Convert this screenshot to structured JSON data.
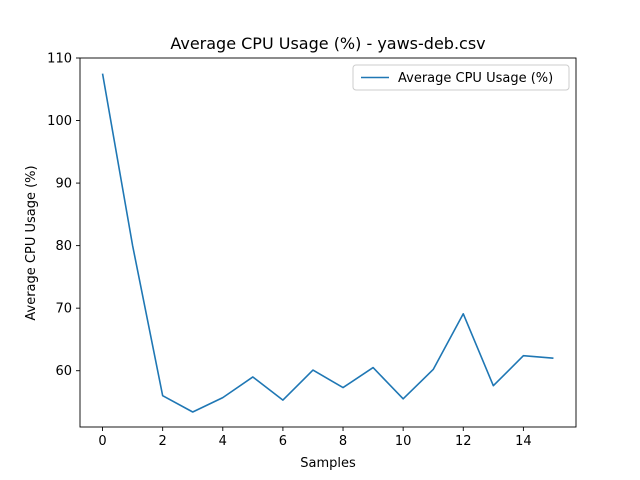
{
  "chart_data": {
    "type": "line",
    "title": "Average CPU Usage (%) - yaws-deb.csv",
    "xlabel": "Samples",
    "ylabel": "Average CPU Usage (%)",
    "xlim": [
      -0.75,
      15.75
    ],
    "ylim": [
      51,
      110
    ],
    "x_ticks": [
      0,
      2,
      4,
      6,
      8,
      10,
      12,
      14
    ],
    "y_ticks": [
      60,
      70,
      80,
      90,
      100,
      110
    ],
    "grid": false,
    "legend_position": "top-right",
    "series": [
      {
        "name": "Average CPU Usage (%)",
        "color": "#1f77b4",
        "x": [
          0,
          1,
          2,
          3,
          4,
          5,
          6,
          7,
          8,
          9,
          10,
          11,
          12,
          13,
          14,
          15
        ],
        "y": [
          107.5,
          80.0,
          56.0,
          53.4,
          55.7,
          59.0,
          55.3,
          60.1,
          57.3,
          60.5,
          55.5,
          60.2,
          69.1,
          57.6,
          62.4,
          62.0
        ]
      }
    ]
  }
}
